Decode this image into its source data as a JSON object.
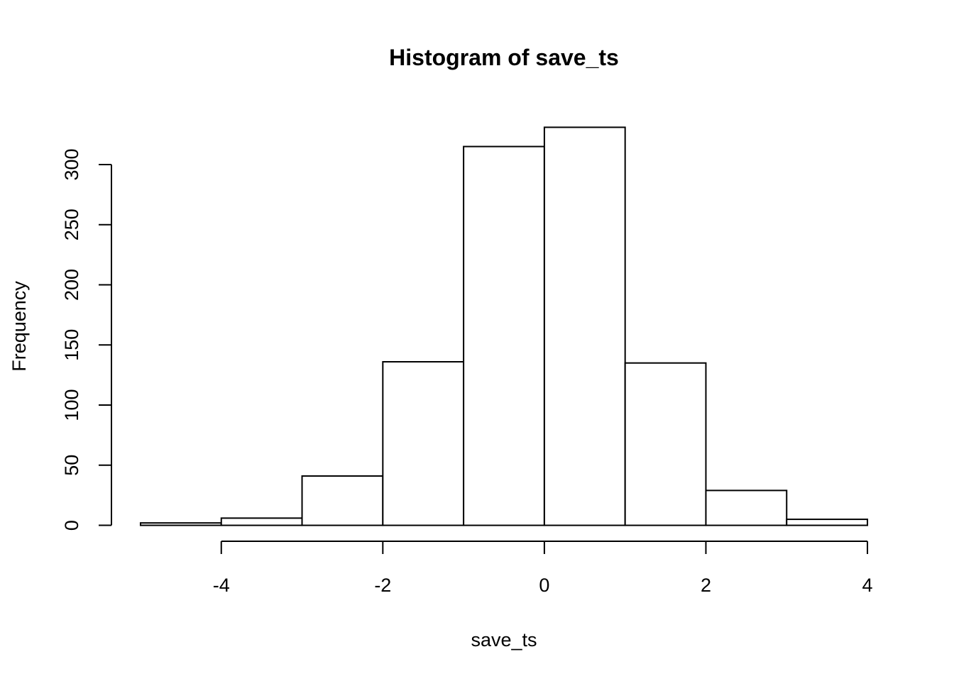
{
  "chart_data": {
    "type": "histogram",
    "title": "Histogram of save_ts",
    "x_label": "save_ts",
    "y_label": "Frequency",
    "bins": [
      -5,
      -4,
      -3,
      -2,
      -1,
      0,
      1,
      2,
      3,
      4
    ],
    "counts": [
      2,
      6,
      41,
      136,
      315,
      331,
      135,
      29,
      5
    ],
    "color": "#ffffff",
    "edge_color": "#000000",
    "xlim": [
      -5.36,
      4.36
    ],
    "xticks": [
      -4,
      -2,
      0,
      2,
      4
    ],
    "ylim": [
      -13.24,
      344.24
    ],
    "yticks": [
      0,
      50,
      100,
      150,
      200,
      250,
      300
    ]
  }
}
